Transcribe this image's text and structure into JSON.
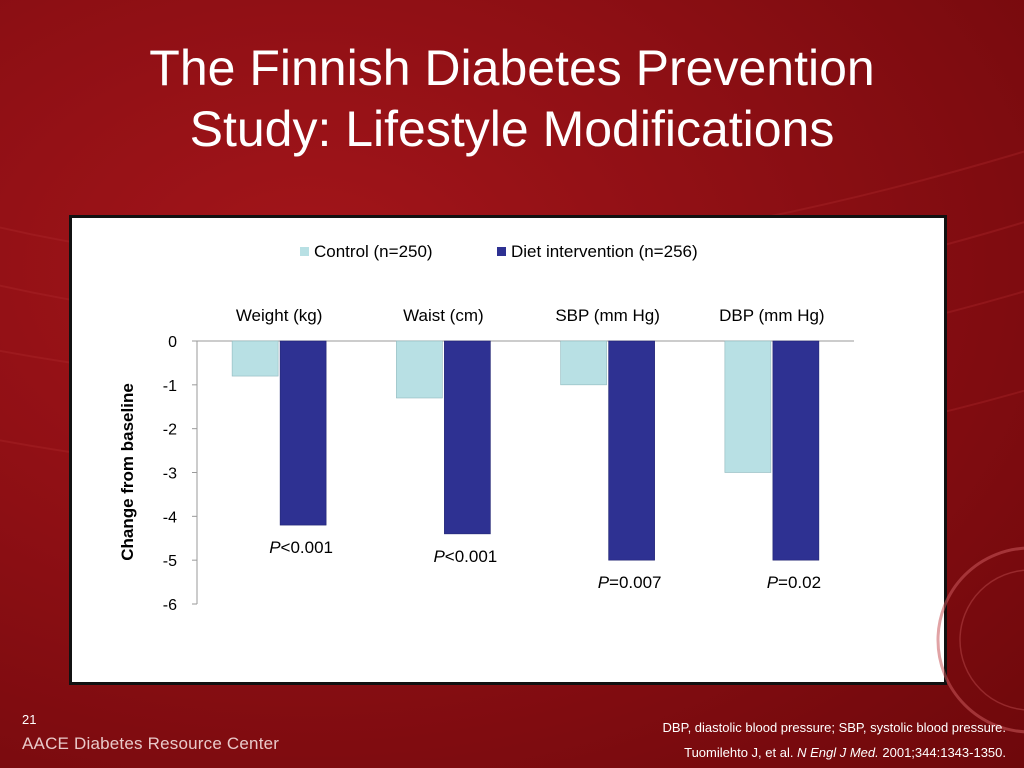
{
  "slide": {
    "title_line1": "The Finnish Diabetes Prevention",
    "title_line2": "Study: Lifestyle Modifications",
    "slide_number": "21",
    "brand": "AACE Diabetes Resource Center",
    "footnote_abbreviations": "DBP, diastolic blood pressure; SBP, systolic blood pressure.",
    "citation_authors": "Tuomilehto J, et al.",
    "citation_journal": "N Engl J Med.",
    "citation_details": "2001;344:1343-1350."
  },
  "colors": {
    "control": "#b8e0e4",
    "intervention": "#2e3192",
    "background": "#8d0f14"
  },
  "chart_data": {
    "type": "bar",
    "title": "",
    "ylabel": "Change from baseline",
    "xlabel": "",
    "ylim": [
      -6,
      0
    ],
    "yticks": [
      0,
      -1,
      -2,
      -3,
      -4,
      -5,
      -6
    ],
    "categories": [
      "Weight (kg)",
      "Waist (cm)",
      "SBP (mm Hg)",
      "DBP (mm Hg)"
    ],
    "category_axis_position": "top",
    "legend_position": "top",
    "grid": false,
    "series": [
      {
        "name": "Control (n=250)",
        "color": "#b8e0e4",
        "values": [
          -0.8,
          -1.3,
          -1.0,
          -3.0
        ]
      },
      {
        "name": "Diet intervention (n=256)",
        "color": "#2e3192",
        "values": [
          -4.2,
          -4.4,
          -5.0,
          -5.0
        ]
      }
    ],
    "annotations": [
      {
        "category": "Weight (kg)",
        "prefix": "P",
        "text": "<0.001"
      },
      {
        "category": "Waist (cm)",
        "prefix": "P",
        "text": "<0.001"
      },
      {
        "category": "SBP (mm Hg)",
        "prefix": "P",
        "text": "=0.007"
      },
      {
        "category": "DBP (mm Hg)",
        "prefix": "P",
        "text": "=0.02"
      }
    ]
  }
}
